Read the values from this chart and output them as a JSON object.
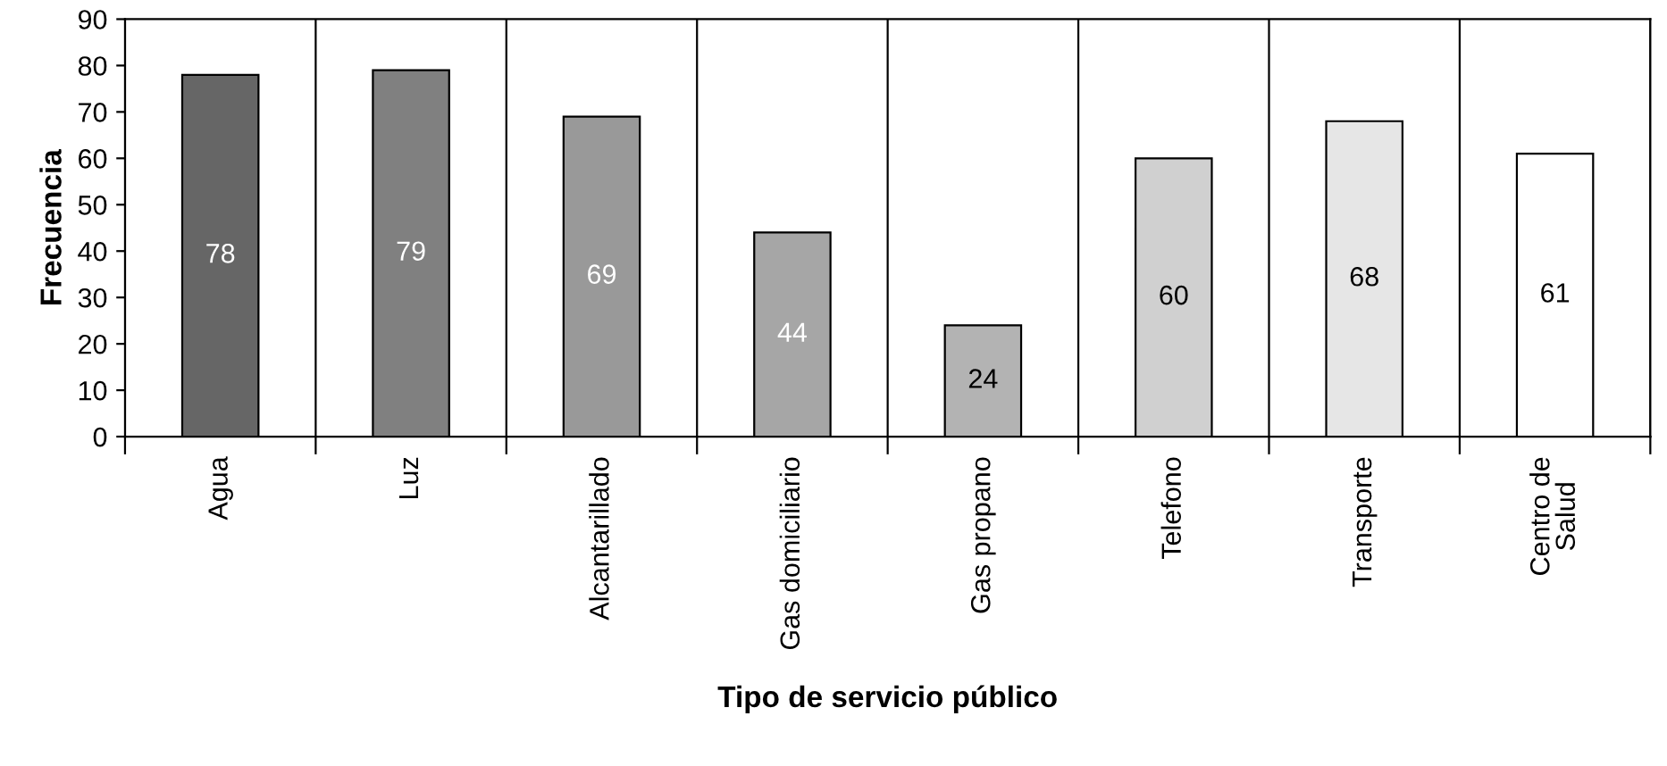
{
  "chart_data": {
    "type": "bar",
    "xlabel": "Tipo de servicio público",
    "ylabel": "Frecuencia",
    "categories": [
      "Agua",
      "Luz",
      "Alcantarillado",
      "Gas domiciliario",
      "Gas propano",
      "Telefono",
      "Transporte",
      "Centro de\nSalud"
    ],
    "values": [
      78,
      79,
      69,
      44,
      24,
      60,
      68,
      61
    ],
    "colors": [
      "#666666",
      "#808080",
      "#999999",
      "#a6a6a6",
      "#b3b3b3",
      "#d0d0d0",
      "#e6e6e6",
      "#ffffff"
    ],
    "ylim": [
      0,
      90
    ],
    "yticks": [
      0,
      10,
      20,
      30,
      40,
      50,
      60,
      70,
      80,
      90
    ],
    "grid": "x",
    "data_labels": true,
    "legend": false
  }
}
